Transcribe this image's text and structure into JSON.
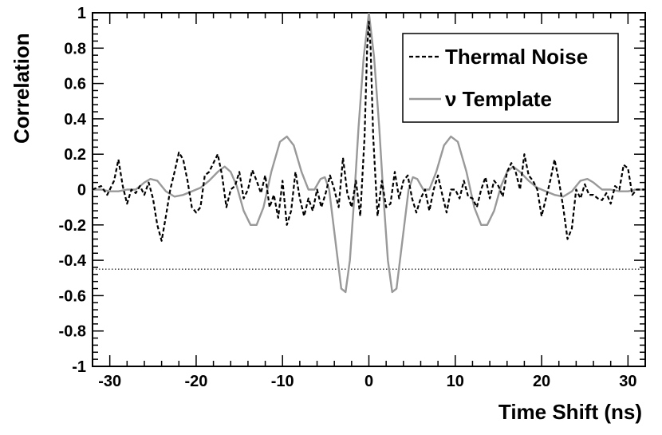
{
  "chart_data": {
    "type": "line",
    "xlabel": "Time Shift (ns)",
    "ylabel": "Correlation",
    "xlim": [
      -32,
      32
    ],
    "ylim": [
      -1,
      1
    ],
    "x_ticks": [
      -30,
      -20,
      -10,
      0,
      10,
      20,
      30
    ],
    "x_tick_labels": [
      "-30",
      "-20",
      "-10",
      "0",
      "10",
      "20",
      "30"
    ],
    "y_ticks": [
      -1,
      -0.8,
      -0.6,
      -0.4,
      -0.2,
      0,
      0.2,
      0.4,
      0.6,
      0.8,
      1
    ],
    "y_tick_labels": [
      "-1",
      "-0.8",
      "-0.6",
      "-0.4",
      "-0.2",
      "0",
      "0.2",
      "0.4",
      "0.6",
      "0.8",
      "1"
    ],
    "legend_position": "top-right",
    "threshold": {
      "y": -0.45,
      "style": "dotted",
      "color": "#000000"
    },
    "series": [
      {
        "name": "Thermal Noise",
        "color": "#000000",
        "style": "dashed",
        "points": [
          [
            -32,
            0.0
          ],
          [
            -31,
            0.02
          ],
          [
            -30.3,
            -0.03
          ],
          [
            -29.5,
            0.05
          ],
          [
            -29,
            0.17
          ],
          [
            -28.5,
            0.02
          ],
          [
            -28,
            -0.08
          ],
          [
            -27.5,
            0.0
          ],
          [
            -27,
            -0.02
          ],
          [
            -26.5,
            0.02
          ],
          [
            -26,
            -0.03
          ],
          [
            -25.5,
            0.04
          ],
          [
            -25,
            -0.05
          ],
          [
            -24.5,
            -0.2
          ],
          [
            -24,
            -0.29
          ],
          [
            -23.5,
            -0.15
          ],
          [
            -23,
            0.0
          ],
          [
            -22.5,
            0.1
          ],
          [
            -22,
            0.21
          ],
          [
            -21.5,
            0.17
          ],
          [
            -21,
            0.05
          ],
          [
            -20.5,
            -0.1
          ],
          [
            -20,
            -0.13
          ],
          [
            -19.5,
            -0.1
          ],
          [
            -19,
            0.08
          ],
          [
            -18.5,
            0.1
          ],
          [
            -18,
            0.15
          ],
          [
            -17.5,
            0.2
          ],
          [
            -17,
            0.08
          ],
          [
            -16.5,
            -0.1
          ],
          [
            -16,
            0.0
          ],
          [
            -15.5,
            0.02
          ],
          [
            -15,
            0.1
          ],
          [
            -14.5,
            -0.05
          ],
          [
            -14,
            0.0
          ],
          [
            -13.5,
            0.11
          ],
          [
            -13,
            0.05
          ],
          [
            -12.5,
            -0.02
          ],
          [
            -12,
            0.08
          ],
          [
            -11.5,
            -0.1
          ],
          [
            -11,
            -0.03
          ],
          [
            -10.5,
            -0.16
          ],
          [
            -10,
            0.05
          ],
          [
            -9.5,
            -0.2
          ],
          [
            -9,
            -0.12
          ],
          [
            -8.5,
            0.1
          ],
          [
            -8,
            -0.05
          ],
          [
            -7.5,
            -0.15
          ],
          [
            -7,
            -0.05
          ],
          [
            -6.5,
            -0.12
          ],
          [
            -6,
            0.0
          ],
          [
            -5.5,
            -0.1
          ],
          [
            -5,
            -0.02
          ],
          [
            -4.5,
            0.08
          ],
          [
            -4,
            0.0
          ],
          [
            -3.5,
            -0.1
          ],
          [
            -3,
            0.18
          ],
          [
            -2.5,
            -0.02
          ],
          [
            -2,
            -0.1
          ],
          [
            -1.5,
            0.05
          ],
          [
            -1,
            -0.15
          ],
          [
            -0.5,
            0.3
          ],
          [
            -0.2,
            0.8
          ],
          [
            0,
            0.95
          ],
          [
            0.2,
            0.8
          ],
          [
            0.5,
            0.3
          ],
          [
            1,
            -0.15
          ],
          [
            1.5,
            0.05
          ],
          [
            2,
            -0.1
          ],
          [
            2.5,
            -0.08
          ],
          [
            3,
            0.1
          ],
          [
            3.5,
            -0.05
          ],
          [
            4,
            0.05
          ],
          [
            4.5,
            0.08
          ],
          [
            5,
            -0.05
          ],
          [
            5.5,
            -0.13
          ],
          [
            6,
            -0.05
          ],
          [
            6.5,
            0.0
          ],
          [
            7,
            -0.12
          ],
          [
            7.5,
            0.0
          ],
          [
            8,
            0.08
          ],
          [
            8.5,
            -0.03
          ],
          [
            9,
            -0.13
          ],
          [
            9.5,
            0.0
          ],
          [
            10,
            0.0
          ],
          [
            10.5,
            -0.05
          ],
          [
            11,
            0.05
          ],
          [
            11.5,
            -0.04
          ],
          [
            12,
            -0.05
          ],
          [
            12.5,
            -0.1
          ],
          [
            13,
            0.0
          ],
          [
            13.5,
            0.07
          ],
          [
            14,
            -0.05
          ],
          [
            14.5,
            0.05
          ],
          [
            15,
            0.02
          ],
          [
            15.5,
            -0.04
          ],
          [
            16,
            0.1
          ],
          [
            16.5,
            0.15
          ],
          [
            17,
            0.1
          ],
          [
            17.5,
            0.0
          ],
          [
            18,
            0.2
          ],
          [
            18.5,
            0.08
          ],
          [
            19,
            0.05
          ],
          [
            19.5,
            0.0
          ],
          [
            20,
            -0.15
          ],
          [
            20.5,
            -0.05
          ],
          [
            21,
            0.05
          ],
          [
            21.5,
            0.17
          ],
          [
            22,
            0.05
          ],
          [
            22.5,
            -0.1
          ],
          [
            23,
            -0.28
          ],
          [
            23.5,
            -0.22
          ],
          [
            24,
            0.0
          ],
          [
            24.5,
            -0.05
          ],
          [
            25,
            0.03
          ],
          [
            25.5,
            -0.03
          ],
          [
            26,
            -0.03
          ],
          [
            26.5,
            -0.05
          ],
          [
            27,
            -0.06
          ],
          [
            27.5,
            -0.02
          ],
          [
            28,
            -0.08
          ],
          [
            28.5,
            0.02
          ],
          [
            29,
            0.0
          ],
          [
            29.5,
            0.14
          ],
          [
            30,
            0.12
          ],
          [
            30.5,
            -0.03
          ],
          [
            31,
            0.0
          ],
          [
            32,
            0.0
          ]
        ]
      },
      {
        "name": "ν Template",
        "color": "#999999",
        "style": "solid",
        "points": [
          [
            -32,
            0.0
          ],
          [
            -31,
            0.0
          ],
          [
            -30,
            -0.01
          ],
          [
            -29,
            -0.01
          ],
          [
            -28,
            0.0
          ],
          [
            -27,
            0.0
          ],
          [
            -26,
            0.04
          ],
          [
            -25.3,
            0.06
          ],
          [
            -24.5,
            0.05
          ],
          [
            -23.5,
            -0.01
          ],
          [
            -22.5,
            -0.04
          ],
          [
            -21.5,
            -0.03
          ],
          [
            -20.5,
            -0.01
          ],
          [
            -19.5,
            0.01
          ],
          [
            -18.5,
            0.05
          ],
          [
            -17.5,
            0.1
          ],
          [
            -16.7,
            0.13
          ],
          [
            -16,
            0.1
          ],
          [
            -15.3,
            0.02
          ],
          [
            -14.5,
            -0.12
          ],
          [
            -13.7,
            -0.2
          ],
          [
            -13,
            -0.2
          ],
          [
            -12.2,
            -0.1
          ],
          [
            -11.3,
            0.1
          ],
          [
            -10.3,
            0.27
          ],
          [
            -9.5,
            0.3
          ],
          [
            -8.7,
            0.25
          ],
          [
            -7.8,
            0.1
          ],
          [
            -7,
            0.0
          ],
          [
            -6.3,
            0.0
          ],
          [
            -5.6,
            0.06
          ],
          [
            -5.1,
            0.07
          ],
          [
            -4.6,
            0.0
          ],
          [
            -4.1,
            -0.2
          ],
          [
            -3.6,
            -0.4
          ],
          [
            -3.2,
            -0.56
          ],
          [
            -2.7,
            -0.58
          ],
          [
            -2.2,
            -0.4
          ],
          [
            -1.7,
            -0.05
          ],
          [
            -1.2,
            0.35
          ],
          [
            -0.6,
            0.75
          ],
          [
            0,
            1.0
          ],
          [
            0.6,
            0.75
          ],
          [
            1.2,
            0.35
          ],
          [
            1.7,
            -0.05
          ],
          [
            2.2,
            -0.4
          ],
          [
            2.7,
            -0.58
          ],
          [
            3.2,
            -0.56
          ],
          [
            3.6,
            -0.4
          ],
          [
            4.1,
            -0.2
          ],
          [
            4.6,
            0.0
          ],
          [
            5.1,
            0.07
          ],
          [
            5.6,
            0.06
          ],
          [
            6.3,
            0.0
          ],
          [
            7,
            0.0
          ],
          [
            7.8,
            0.1
          ],
          [
            8.7,
            0.25
          ],
          [
            9.5,
            0.3
          ],
          [
            10.3,
            0.27
          ],
          [
            11.3,
            0.1
          ],
          [
            12.2,
            -0.1
          ],
          [
            13,
            -0.2
          ],
          [
            13.7,
            -0.2
          ],
          [
            14.5,
            -0.12
          ],
          [
            15.3,
            0.02
          ],
          [
            16,
            0.1
          ],
          [
            16.7,
            0.13
          ],
          [
            17.5,
            0.1
          ],
          [
            18.5,
            0.05
          ],
          [
            19.5,
            0.01
          ],
          [
            20.5,
            -0.01
          ],
          [
            21.5,
            -0.03
          ],
          [
            22.5,
            -0.04
          ],
          [
            23.5,
            -0.01
          ],
          [
            24.5,
            0.05
          ],
          [
            25.3,
            0.06
          ],
          [
            26,
            0.04
          ],
          [
            27,
            0.0
          ],
          [
            28,
            0.0
          ],
          [
            29,
            -0.01
          ],
          [
            30,
            -0.01
          ],
          [
            31,
            0.0
          ],
          [
            32,
            0.0
          ]
        ]
      }
    ]
  }
}
